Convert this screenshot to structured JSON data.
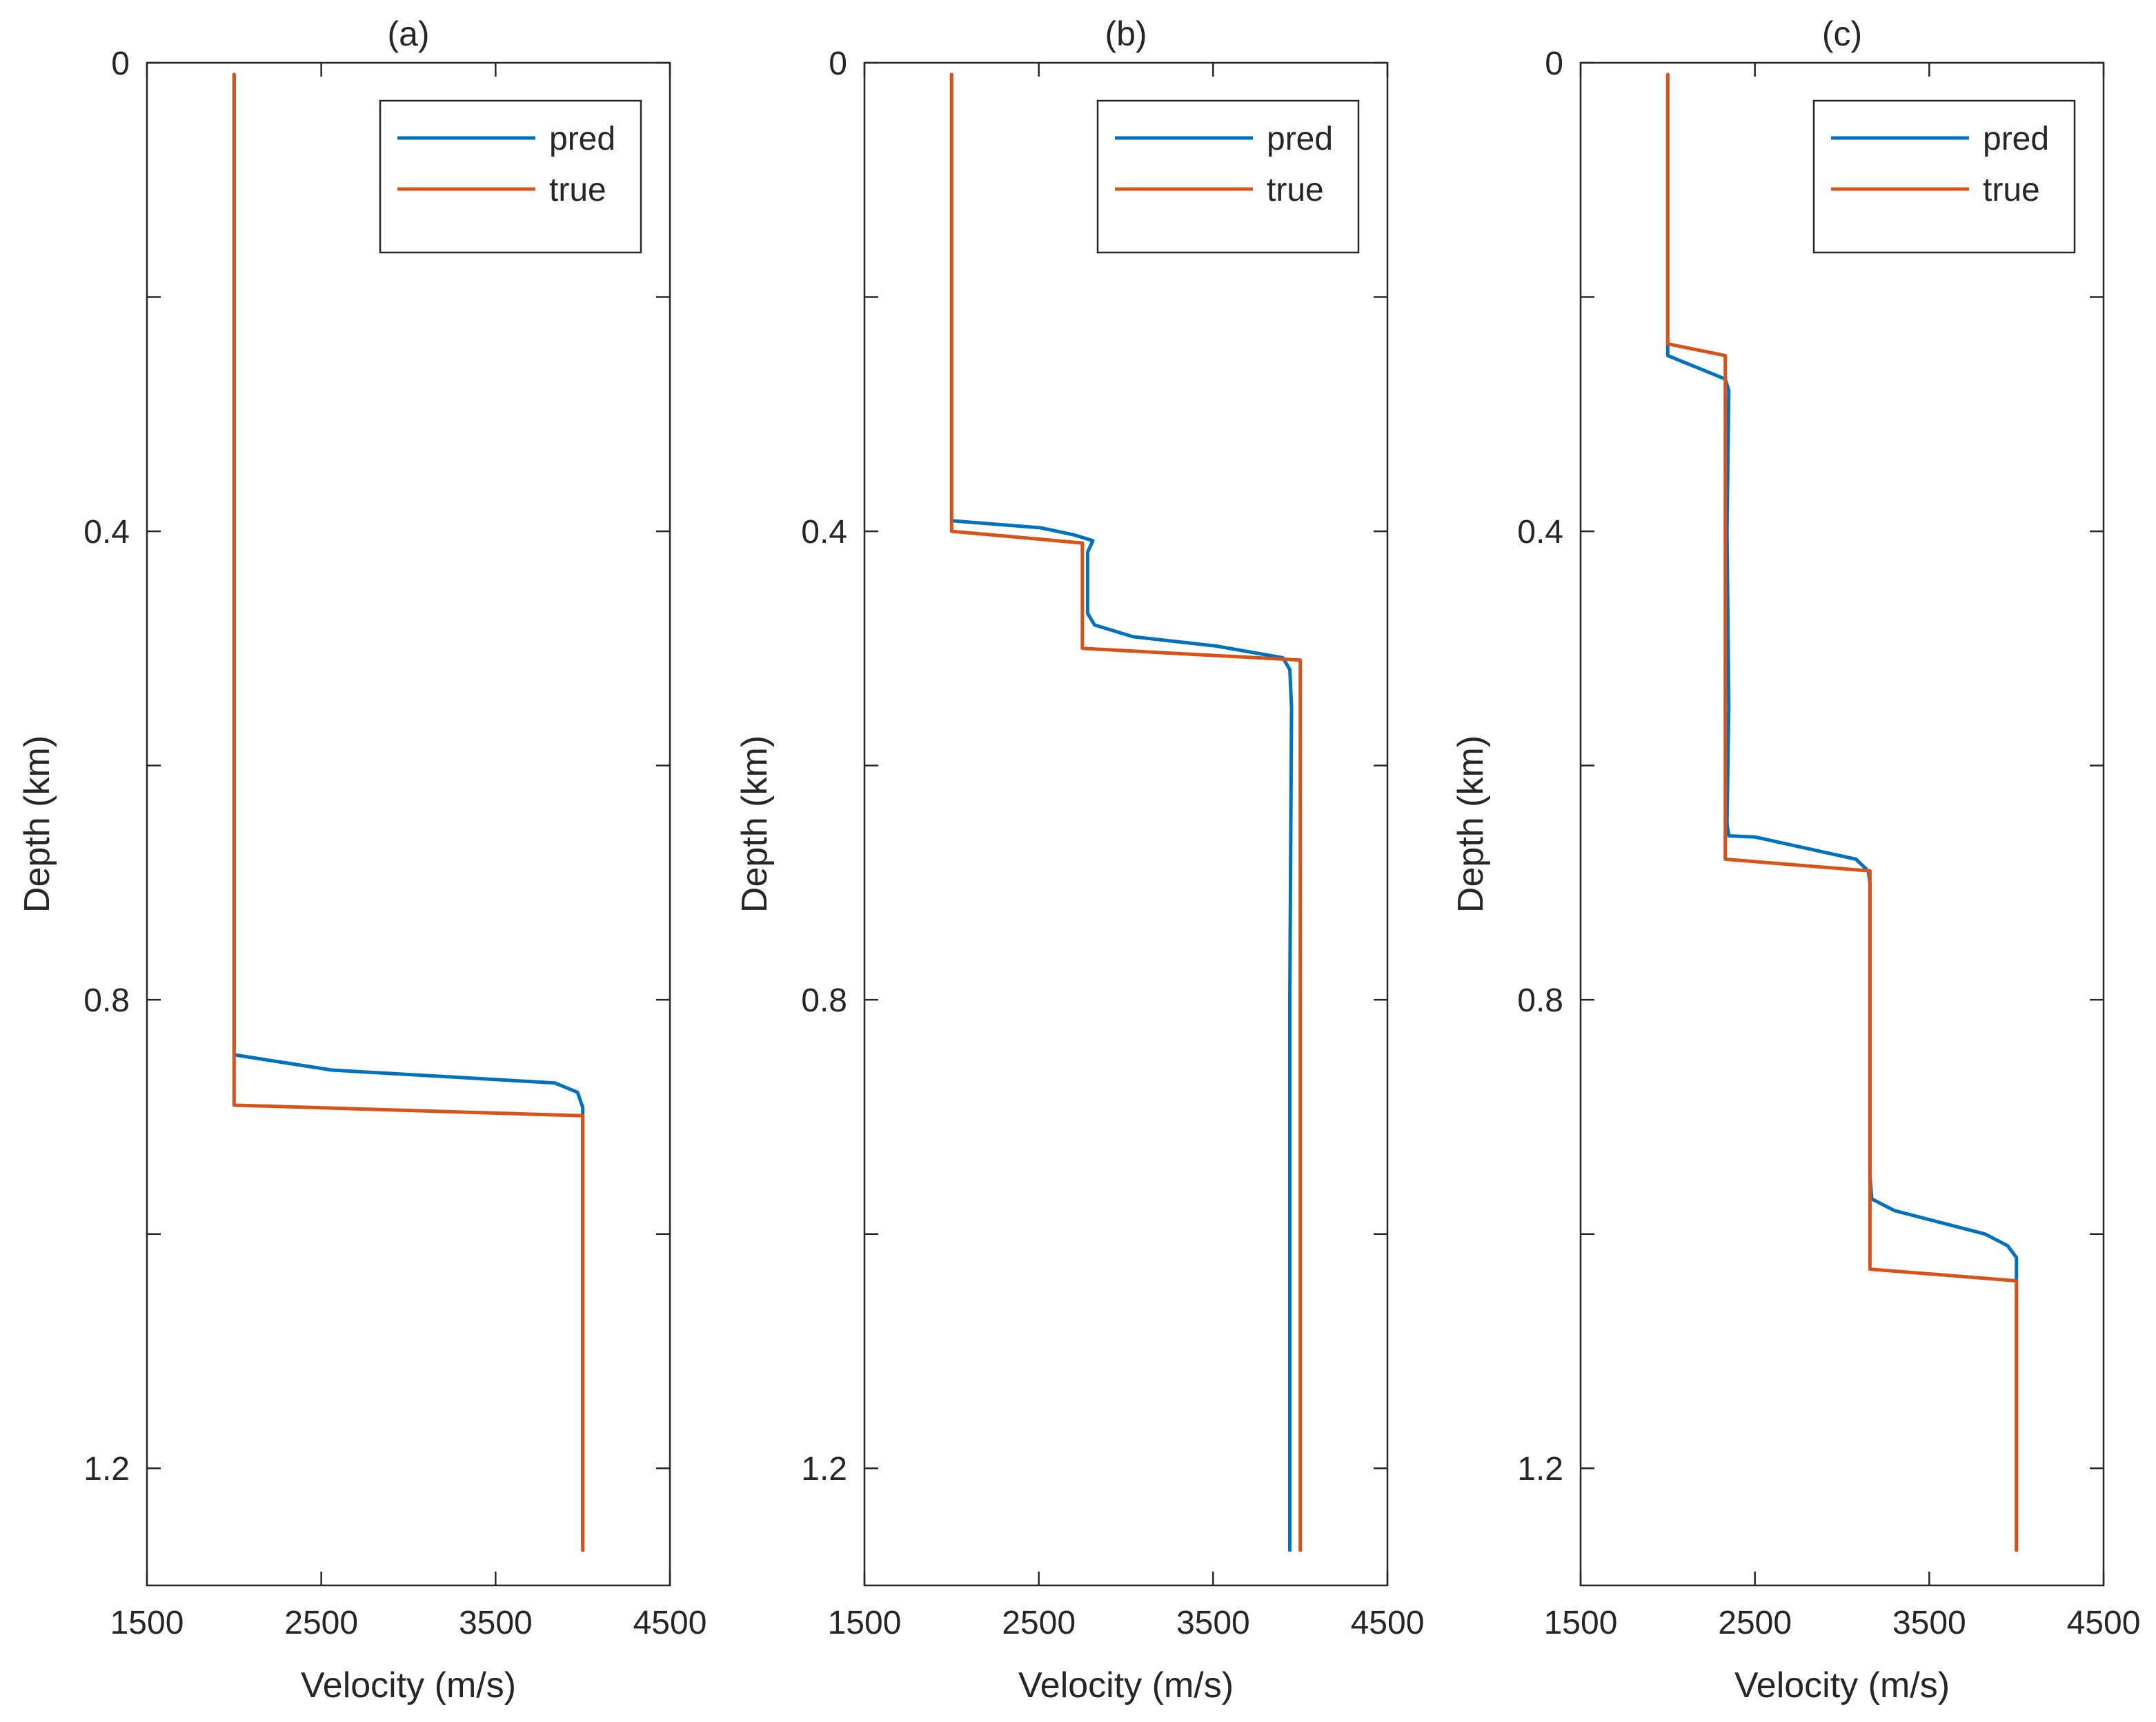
{
  "chart_data": [
    {
      "type": "line",
      "title": "(a)",
      "xlabel": "Velocity (m/s)",
      "ylabel": "Depth (km)",
      "xlim": [
        1500,
        4500
      ],
      "ylim": [
        0,
        1.3
      ],
      "y_reversed": true,
      "x_ticks": [
        "1500",
        "2500",
        "3500",
        "4500"
      ],
      "y_ticks": [
        "0",
        "0.4",
        "0.8",
        "1.2"
      ],
      "y_minor_ticks": [
        0.2,
        0.6,
        1.0
      ],
      "legend": {
        "placement": "top-right",
        "entries": [
          "pred",
          "true"
        ]
      },
      "series": [
        {
          "name": "pred",
          "color": "#0072BD",
          "x": [
            2000,
            2000,
            2560,
            3840,
            3970,
            4000,
            4000,
            4000
          ],
          "y": [
            0.01,
            0.847,
            0.86,
            0.871,
            0.879,
            0.892,
            0.9,
            1.27
          ]
        },
        {
          "name": "true",
          "color": "#D95319",
          "x": [
            2000,
            2000,
            2000,
            4000,
            4000
          ],
          "y": [
            0.01,
            0.846,
            0.89,
            0.899,
            1.27
          ]
        }
      ]
    },
    {
      "type": "line",
      "title": "(b)",
      "xlabel": "Velocity (m/s)",
      "ylabel": "Depth (km)",
      "xlim": [
        1500,
        4500
      ],
      "ylim": [
        0,
        1.3
      ],
      "y_reversed": true,
      "x_ticks": [
        "1500",
        "2500",
        "3500",
        "4500"
      ],
      "y_ticks": [
        "0",
        "0.4",
        "0.8",
        "1.2"
      ],
      "y_minor_ticks": [
        0.2,
        0.6,
        1.0
      ],
      "legend": {
        "placement": "top-right",
        "entries": [
          "pred",
          "true"
        ]
      },
      "series": [
        {
          "name": "pred",
          "color": "#0072BD",
          "x": [
            2000,
            2000,
            2510,
            2700,
            2810,
            2780,
            2780,
            2820,
            3040,
            3520,
            3900,
            3940,
            3950,
            3940,
            3940,
            3940
          ],
          "y": [
            0.01,
            0.391,
            0.397,
            0.403,
            0.408,
            0.418,
            0.47,
            0.48,
            0.49,
            0.498,
            0.508,
            0.518,
            0.55,
            0.8,
            1.1,
            1.27
          ]
        },
        {
          "name": "true",
          "color": "#D95319",
          "x": [
            2000,
            2000,
            2750,
            2750,
            4000,
            4000
          ],
          "y": [
            0.01,
            0.4,
            0.41,
            0.5,
            0.51,
            1.27
          ]
        }
      ]
    },
    {
      "type": "line",
      "title": "(c)",
      "xlabel": "Velocity (m/s)",
      "ylabel": "Depth (km)",
      "xlim": [
        1500,
        4500
      ],
      "ylim": [
        0,
        1.3
      ],
      "y_reversed": true,
      "x_ticks": [
        "1500",
        "2500",
        "3500",
        "4500"
      ],
      "y_ticks": [
        "0",
        "0.4",
        "0.8",
        "1.2"
      ],
      "y_minor_ticks": [
        0.2,
        0.6,
        1.0
      ],
      "legend": {
        "placement": "top-right",
        "entries": [
          "pred",
          "true"
        ]
      },
      "series": [
        {
          "name": "pred",
          "color": "#0072BD",
          "x": [
            2000,
            2000,
            2330,
            2350,
            2340,
            2350,
            2340,
            2350,
            2500,
            3080,
            3150,
            3160,
            3160,
            3160,
            3170,
            3300,
            3820,
            3950,
            4000,
            4000,
            4000
          ],
          "y": [
            0.01,
            0.25,
            0.27,
            0.28,
            0.4,
            0.55,
            0.65,
            0.66,
            0.661,
            0.68,
            0.69,
            0.7,
            0.85,
            0.95,
            0.97,
            0.98,
            1.0,
            1.01,
            1.02,
            1.03,
            1.27
          ]
        },
        {
          "name": "true",
          "color": "#D95319",
          "x": [
            2000,
            2000,
            2330,
            2330,
            3160,
            3160,
            4000,
            4000
          ],
          "y": [
            0.01,
            0.24,
            0.25,
            0.68,
            0.69,
            1.03,
            1.04,
            1.27
          ]
        }
      ]
    }
  ]
}
